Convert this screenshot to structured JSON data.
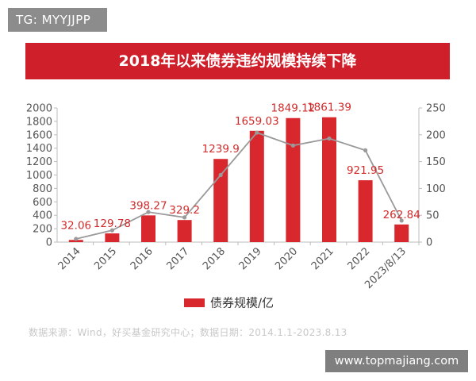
{
  "watermark": "TG: MYYJJPP",
  "site_watermark": "www.topmajiang.com",
  "source_note": "数据来源：Wind，好买基金研究中心；数据日期：2014.1.1-2023.8.13",
  "chart_data": {
    "type": "bar",
    "title": "2018年以来债券违约规模持续下降",
    "categories": [
      "2014",
      "2015",
      "2016",
      "2017",
      "2018",
      "2019",
      "2020",
      "2021",
      "2022",
      "2023/8/13"
    ],
    "series": [
      {
        "name": "债券规模/亿",
        "type": "bar",
        "axis": "left",
        "color": "#d9272e",
        "values": [
          32.06,
          129.78,
          398.27,
          329.2,
          1239.9,
          1659.03,
          1849.12,
          1861.39,
          921.95,
          262.84
        ],
        "labels": [
          "32.06",
          "129.78",
          "398.27",
          "329.2",
          "1239.9",
          "1659.03",
          "1849.12",
          "1861.39",
          "921.95",
          "262.84"
        ]
      },
      {
        "type": "line",
        "axis": "right",
        "color": "#9a9a9a",
        "values": [
          6,
          22,
          56,
          46,
          125,
          204,
          180,
          193,
          171,
          40
        ]
      }
    ],
    "ylim": [
      0,
      2000
    ],
    "y_ticks": [
      "0",
      "200",
      "400",
      "600",
      "800",
      "1000",
      "1200",
      "1400",
      "1600",
      "1800",
      "2000"
    ],
    "y2lim": [
      0,
      250
    ],
    "y2_ticks": [
      "0",
      "50",
      "100",
      "150",
      "200",
      "250"
    ],
    "grid": false,
    "legend_position": "bottom-center"
  }
}
